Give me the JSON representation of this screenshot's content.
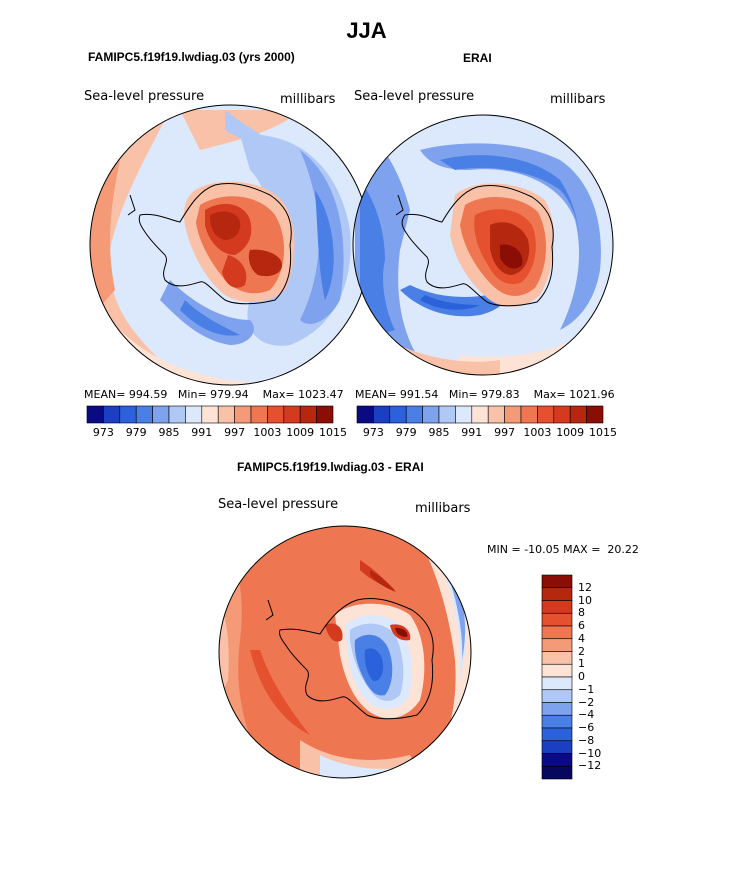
{
  "chart_data": {
    "type": "heatmap",
    "title": "JJA",
    "panels": [
      {
        "title": "FAMIPC5.f19f19.lwdiag.03 (yrs 2000)",
        "variable": "Sea-level pressure",
        "units": "millibars",
        "stats_line": {
          "mean_label": "MEAN=",
          "mean": "994.59",
          "min_label": "Min=",
          "min": "979.94",
          "max_label": "Max=",
          "max": "1023.47"
        },
        "colorbar_ticks": [
          "973",
          "979",
          "985",
          "991",
          "997",
          "1003",
          "1009",
          "1015"
        ]
      },
      {
        "title": "ERAI",
        "variable": "Sea-level pressure",
        "units": "millibars",
        "stats_line": {
          "mean_label": "MEAN=",
          "mean": "991.54",
          "min_label": "Min=",
          "min": "979.83",
          "max_label": "Max=",
          "max": "1021.96"
        },
        "colorbar_ticks": [
          "973",
          "979",
          "985",
          "991",
          "997",
          "1003",
          "1009",
          "1015"
        ]
      },
      {
        "title": "FAMIPC5.f19f19.lwdiag.03 - ERAI",
        "variable": "Sea-level pressure",
        "units": "millibars",
        "stats_line": {
          "min_label": "MIN =",
          "min": "-10.05",
          "max_label": "MAX =",
          "max": "20.22"
        },
        "colorbar_ticks": [
          "12",
          "10",
          "8",
          "6",
          "4",
          "2",
          "1",
          "0",
          "−1",
          "−2",
          "−4",
          "−6",
          "−8",
          "−10",
          "−12"
        ]
      }
    ],
    "abs_palette": [
      "#0a0a82",
      "#1a3fc1",
      "#2b62db",
      "#4a7fe6",
      "#7ea2ee",
      "#b0c8f5",
      "#dce8fb",
      "#fde3d5",
      "#f9c2a8",
      "#f59a77",
      "#ee7752",
      "#e5512f",
      "#d33a1e",
      "#b62710",
      "#8a0e05"
    ],
    "diff_palette": [
      "#8a0e05",
      "#b62710",
      "#d33a1e",
      "#e5512f",
      "#ee7752",
      "#f59a77",
      "#f9c2a8",
      "#fde3d5",
      "#dce8fb",
      "#b0c8f5",
      "#7ea2ee",
      "#4a7fe6",
      "#2b62db",
      "#1a3fc1",
      "#0a0a82",
      "#070760"
    ]
  }
}
